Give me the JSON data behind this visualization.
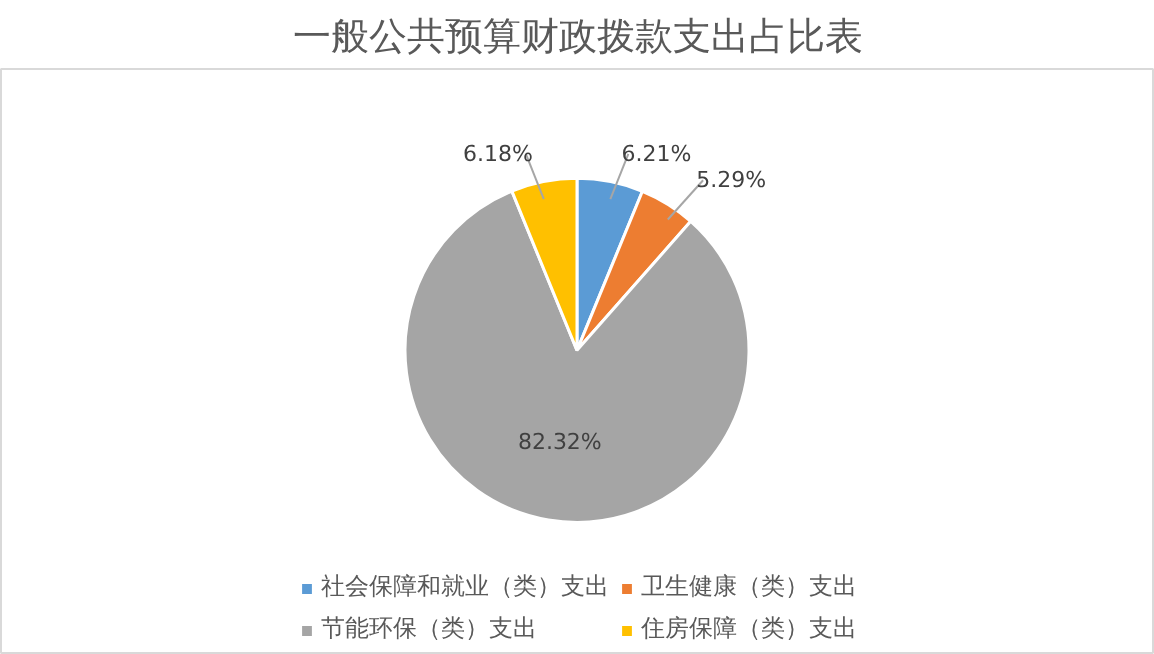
{
  "chart_data": {
    "type": "pie",
    "title": "一般公共预算财政拨款支出占比表",
    "categories": [
      "社会保障和就业（类）支出",
      "卫生健康（类）支出",
      "节能环保（类）支出",
      "住房保障（类）支出"
    ],
    "values": [
      6.21,
      5.29,
      82.32,
      6.18
    ],
    "colors": [
      "#5b9bd5",
      "#ed7d31",
      "#a5a5a5",
      "#ffc000"
    ],
    "value_labels": [
      "6.21%",
      "5.29%",
      "82.32%",
      "6.18%"
    ],
    "legend": "bottom"
  }
}
